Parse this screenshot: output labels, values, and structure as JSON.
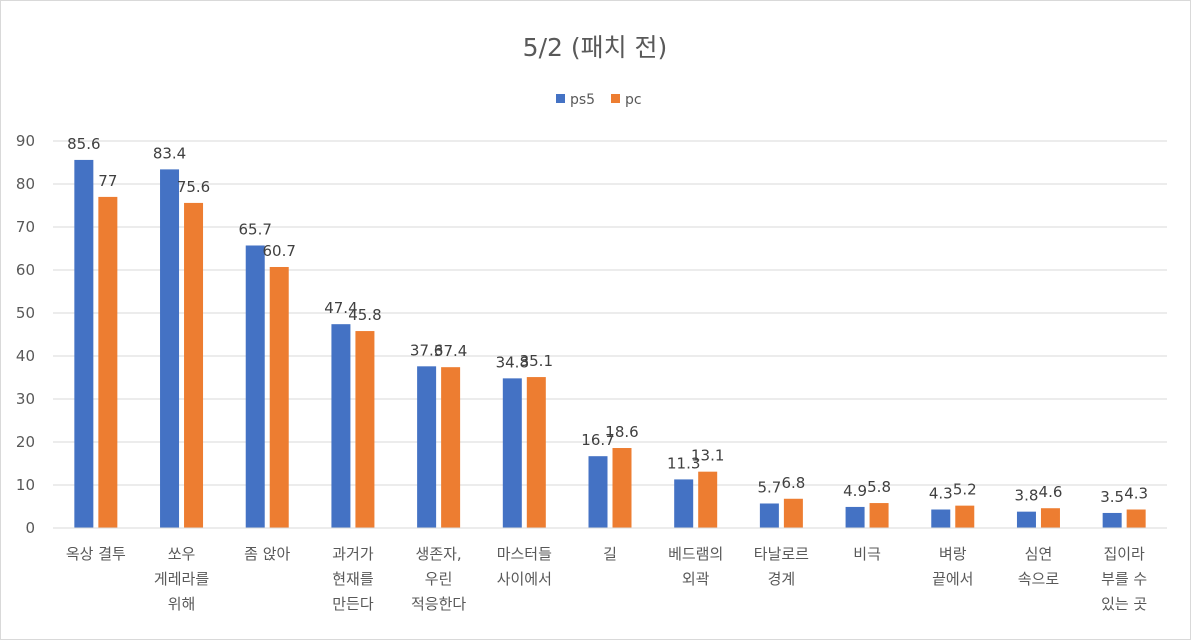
{
  "chart_data": {
    "type": "bar",
    "title": "5/2 (패치 전)",
    "legend_position": "top",
    "grid": true,
    "ylim": [
      0,
      90
    ],
    "yticks": [
      0,
      10,
      20,
      30,
      40,
      50,
      60,
      70,
      80,
      90
    ],
    "categories": [
      [
        "옥상 결투"
      ],
      [
        "쏘우",
        "게레라를",
        "위해"
      ],
      [
        "좀 앉아"
      ],
      [
        "과거가",
        "현재를",
        "만든다"
      ],
      [
        "생존자,",
        "우린",
        "적응한다"
      ],
      [
        "마스터들",
        "사이에서"
      ],
      [
        "길"
      ],
      [
        "베드램의",
        "외곽"
      ],
      [
        "타날로르",
        "경계"
      ],
      [
        "비극"
      ],
      [
        "벼랑",
        "끝에서"
      ],
      [
        "심연",
        "속으로"
      ],
      [
        "집이라",
        "부를 수",
        "있는 곳"
      ]
    ],
    "series": [
      {
        "name": "ps5",
        "color": "#4472c4",
        "values": [
          85.6,
          83.4,
          65.7,
          47.4,
          37.6,
          34.8,
          16.7,
          11.3,
          5.7,
          4.9,
          4.3,
          3.8,
          3.5
        ]
      },
      {
        "name": "pc",
        "color": "#ed7d31",
        "values": [
          77,
          75.6,
          60.7,
          45.8,
          37.4,
          35.1,
          18.6,
          13.1,
          6.8,
          5.8,
          5.2,
          4.6,
          4.3
        ]
      }
    ]
  }
}
